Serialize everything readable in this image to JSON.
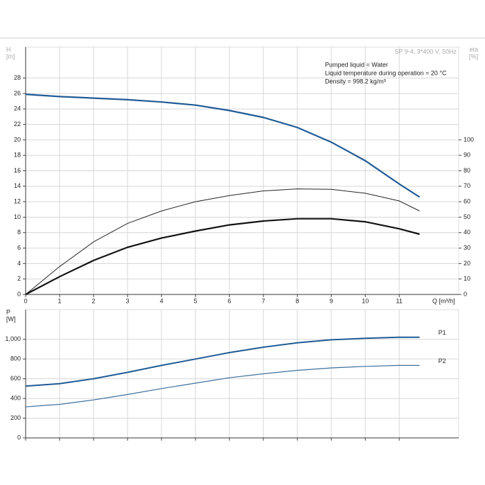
{
  "chart_data": [
    {
      "type": "line",
      "subtitle": "SP 9-4, 3*400 V, 50Hz",
      "y_label": [
        "H",
        "[m]"
      ],
      "y2_label": [
        "eta",
        "[%]"
      ],
      "x_label": "Q [m³/h]",
      "annotations": [
        "Pumped liquid = Water",
        "Liquid temperature during operation = 20 °C",
        "Density = 998.2 kg/m³"
      ],
      "xlim": [
        0,
        12.75
      ],
      "xticks": [
        0,
        1,
        2,
        3,
        4,
        5,
        6,
        7,
        8,
        9,
        10,
        11
      ],
      "ylim": [
        0,
        32
      ],
      "yticks": [
        0,
        2,
        4,
        6,
        8,
        10,
        12,
        14,
        16,
        18,
        20,
        22,
        24,
        26,
        28
      ],
      "y2lim": [
        0,
        160
      ],
      "y2ticks": [
        0,
        10,
        20,
        30,
        40,
        50,
        60,
        70,
        80,
        90,
        100
      ],
      "grid": true,
      "x": [
        0,
        1,
        2,
        3,
        4,
        5,
        6,
        7,
        8,
        9,
        10,
        11,
        11.6
      ],
      "series": [
        {
          "color": "#1f5a96",
          "line_width": 2.2,
          "values": [
            25.9,
            25.6,
            25.4,
            25.2,
            24.9,
            24.5,
            23.8,
            22.9,
            21.6,
            19.7,
            17.3,
            14.3,
            12.6
          ]
        },
        {
          "color": "#222222",
          "line_width": 1,
          "axis": "y2",
          "values": [
            0,
            18,
            34,
            46,
            54,
            60,
            64,
            67,
            68.3,
            68,
            65.5,
            60.5,
            54
          ]
        },
        {
          "color": "#111111",
          "line_width": 2.2,
          "axis": "y2",
          "values": [
            0,
            11.5,
            22,
            30.5,
            36.5,
            41,
            45,
            47.5,
            49,
            49,
            47,
            42.5,
            39
          ]
        }
      ]
    },
    {
      "type": "line",
      "y_label": [
        "P",
        "[W]"
      ],
      "xlim": [
        0,
        12.75
      ],
      "ylim": [
        0,
        1300
      ],
      "yticks": [
        0,
        200,
        400,
        600,
        800,
        {
          "value": 1000,
          "label": "1,000"
        }
      ],
      "grid": true,
      "x": [
        0,
        1,
        2,
        3,
        4,
        5,
        6,
        7,
        8,
        9,
        10,
        11,
        11.6
      ],
      "series": [
        {
          "name": "P1",
          "color": "#1f5a96",
          "line_width": 2,
          "values": [
            525,
            550,
            600,
            665,
            735,
            800,
            865,
            920,
            965,
            995,
            1010,
            1020,
            1020
          ]
        },
        {
          "name": "P2",
          "color": "#3a6e9e",
          "line_width": 1.2,
          "values": [
            315,
            340,
            385,
            440,
            500,
            555,
            610,
            650,
            685,
            710,
            725,
            735,
            735
          ]
        }
      ]
    }
  ]
}
